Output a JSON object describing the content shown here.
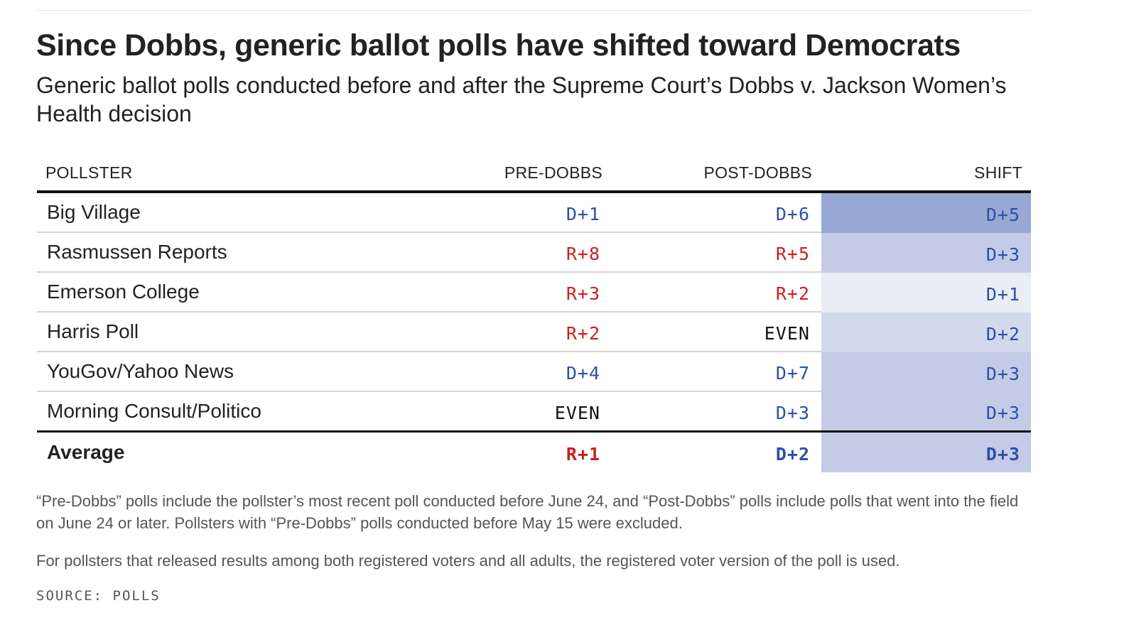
{
  "title": "Since Dobbs, generic ballot polls have shifted toward Democrats",
  "subtitle": "Generic ballot polls conducted before and after the Supreme Court’s Dobbs v. Jackson Women’s Health decision",
  "columns": {
    "pollster": "POLLSTER",
    "pre": "PRE-DOBBS",
    "post": "POST-DOBBS",
    "shift": "SHIFT"
  },
  "colors": {
    "democrat_text": "#2c4fa8",
    "republican_text": "#cc1f1f",
    "even_text": "#111111",
    "shift_scale": {
      "D+1": "#ebedf6",
      "D+2": "#d3d9ec",
      "D+3": "#c3cbe6",
      "D+5": "#98a8d4"
    }
  },
  "chart_data": {
    "type": "table",
    "title": "Since Dobbs, generic ballot polls have shifted toward Democrats",
    "subtitle": "Generic ballot polls conducted before and after the Supreme Court’s Dobbs v. Jackson Women’s Health decision",
    "columns": [
      "POLLSTER",
      "PRE-DOBBS",
      "POST-DOBBS",
      "SHIFT"
    ],
    "rows": [
      {
        "pollster": "Big Village",
        "pre": "D+1",
        "post": "D+6",
        "shift": "D+5"
      },
      {
        "pollster": "Rasmussen Reports",
        "pre": "R+8",
        "post": "R+5",
        "shift": "D+3"
      },
      {
        "pollster": "Emerson College",
        "pre": "R+3",
        "post": "R+2",
        "shift": "D+1"
      },
      {
        "pollster": "Harris Poll",
        "pre": "R+2",
        "post": "EVEN",
        "shift": "D+2"
      },
      {
        "pollster": "YouGov/Yahoo News",
        "pre": "D+4",
        "post": "D+7",
        "shift": "D+3"
      },
      {
        "pollster": "Morning Consult/Politico",
        "pre": "EVEN",
        "post": "D+3",
        "shift": "D+3"
      }
    ],
    "average": {
      "pollster": "Average",
      "pre": "R+1",
      "post": "D+2",
      "shift": "D+3"
    }
  },
  "notes": [
    "“Pre-Dobbs” polls include the pollster’s most recent poll conducted before June 24, and “Post-Dobbs” polls include polls that went into the field on June 24 or later. Pollsters with “Pre-Dobbs” polls conducted before May 15 were excluded.",
    "For pollsters that released results among both registered voters and all adults, the registered voter version of the poll is used."
  ],
  "source": "SOURCE: POLLS"
}
